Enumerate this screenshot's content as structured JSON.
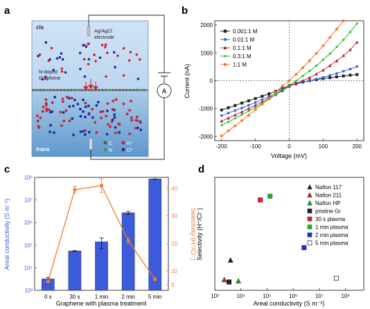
{
  "panel_labels": [
    "a",
    "b",
    "c",
    "d"
  ],
  "schematic": {
    "cis_label": "cis",
    "trans_label": "trans",
    "electrode_label": [
      "Ag/AgCl",
      "electrode"
    ],
    "membrane_label": [
      "N-doped",
      "Graphene"
    ],
    "ammeter_label": "A",
    "legend": [
      {
        "symbol": "C",
        "color": "#555555"
      },
      {
        "symbol": "H⁺",
        "color": "#cc2233"
      },
      {
        "symbol": "N",
        "color": "#33a046"
      },
      {
        "symbol": "Cl⁻",
        "color": "#1f2a9c"
      }
    ]
  },
  "chart_data": [
    {
      "panel": "b",
      "type": "line",
      "xlabel": "Voltage (mV)",
      "ylabel": "Current (nA)",
      "xlim": [
        -220,
        220
      ],
      "ylim": [
        -2150,
        2150
      ],
      "xticks": [
        -200,
        -100,
        0,
        100,
        200
      ],
      "yticks": [
        -2000,
        -1000,
        0,
        1000,
        2000
      ],
      "legend_position": "top-left",
      "series": [
        {
          "name": "0.001:1 M",
          "color": "#222222",
          "marker": "square",
          "x": [
            -200,
            -180,
            -160,
            -140,
            -120,
            -100,
            -80,
            -60,
            -40,
            -20,
            0,
            20,
            40,
            60,
            80,
            100,
            120,
            140,
            160,
            180,
            200
          ],
          "y": [
            -1050,
            -970,
            -890,
            -800,
            -720,
            -640,
            -560,
            -470,
            -380,
            -280,
            -170,
            -100,
            -50,
            0,
            40,
            80,
            110,
            140,
            170,
            200,
            220
          ]
        },
        {
          "name": "0.01:1 M",
          "color": "#3366dd",
          "marker": "circle",
          "x": [
            -200,
            -180,
            -160,
            -140,
            -120,
            -100,
            -80,
            -60,
            -40,
            -20,
            0,
            20,
            40,
            60,
            80,
            100,
            120,
            140,
            160,
            180,
            200
          ],
          "y": [
            -1250,
            -1160,
            -1070,
            -980,
            -880,
            -780,
            -680,
            -570,
            -450,
            -320,
            -180,
            -120,
            -60,
            0,
            60,
            120,
            190,
            260,
            340,
            420,
            510
          ]
        },
        {
          "name": "0.1:1 M",
          "color": "#ee2244",
          "marker": "triangle",
          "x": [
            -200,
            -180,
            -160,
            -140,
            -120,
            -100,
            -80,
            -60,
            -40,
            -20,
            0,
            20,
            40,
            60,
            80,
            100,
            120,
            140,
            160,
            180,
            200
          ],
          "y": [
            -1450,
            -1340,
            -1230,
            -1120,
            -1000,
            -880,
            -760,
            -630,
            -500,
            -360,
            -200,
            -100,
            0,
            110,
            240,
            380,
            540,
            710,
            900,
            1110,
            1380
          ]
        },
        {
          "name": "0.3:1 M",
          "color": "#22bb22",
          "marker": "diamond",
          "x": [
            -200,
            -180,
            -160,
            -140,
            -120,
            -100,
            -80,
            -60,
            -40,
            -20,
            0,
            20,
            40,
            60,
            80,
            100,
            120,
            140,
            160,
            180,
            200
          ],
          "y": [
            -1600,
            -1480,
            -1350,
            -1220,
            -1090,
            -950,
            -810,
            -660,
            -500,
            -340,
            -170,
            0,
            170,
            350,
            540,
            750,
            970,
            1210,
            1470,
            1750,
            2050
          ]
        },
        {
          "name": "1:1 M",
          "color": "#ff6a1a",
          "marker": "circle",
          "x": [
            -200,
            -180,
            -160,
            -140,
            -120,
            -100,
            -80,
            -60,
            -40,
            -20,
            0,
            20,
            40,
            60,
            80,
            100,
            120,
            140,
            160
          ],
          "y": [
            -1980,
            -1800,
            -1620,
            -1430,
            -1240,
            -1040,
            -840,
            -630,
            -410,
            -190,
            0,
            230,
            470,
            720,
            980,
            1260,
            1550,
            1850,
            2150
          ]
        }
      ]
    },
    {
      "panel": "c",
      "type": "bar",
      "xlabel": "Graphene with plasma treatment",
      "ylabel": "Areal conductivity (S m⁻²)",
      "y2label": "Selectivity (H⁺/Cl⁻)",
      "categories": [
        "0 s",
        "30 s",
        "1 min",
        "2 min",
        "5 min"
      ],
      "ylim_log": [
        3,
        8
      ],
      "y2lim": [
        3,
        44
      ],
      "bar_color": "#3b5bdb",
      "line_color": "#f07a2a",
      "series": [
        {
          "name": "Areal conductivity",
          "axis": "left",
          "scale": "log",
          "values": [
            3200,
            55000,
            140000,
            2700000,
            85000000
          ],
          "error": [
            500,
            2000,
            70000,
            400000,
            1000000
          ]
        },
        {
          "name": "Selectivity",
          "axis": "right",
          "values": [
            6.2,
            39.5,
            41,
            21,
            7
          ],
          "error": [
            0.3,
            1.2,
            2.5,
            1.0,
            0.3
          ]
        }
      ],
      "yticks_log": [
        "10³",
        "10⁴",
        "10⁵",
        "10⁶",
        "10⁷",
        "10⁸"
      ],
      "y2ticks": [
        5,
        10,
        20,
        30,
        40
      ]
    },
    {
      "panel": "d",
      "type": "scatter",
      "xlabel": "Areal conductivity (S m⁻²)",
      "ylabel": "Selectivity (H⁺/Cl⁻)",
      "x_scale": "log",
      "xlim_log": [
        3,
        8.7
      ],
      "ylim": [
        3,
        48
      ],
      "xticks_log": [
        "10³",
        "10⁴",
        "10⁵",
        "10⁶",
        "10⁷",
        "10⁸"
      ],
      "legend_position": "top-right",
      "series": [
        {
          "name": "Nafion 117",
          "marker": "triangle",
          "color": "#222222",
          "fill": true,
          "x": [
            4000
          ],
          "y": [
            15
          ]
        },
        {
          "name": "Nafion 211",
          "marker": "triangle",
          "color": "#cc2233",
          "fill": true,
          "x": [
            2300
          ],
          "y": [
            7.2
          ]
        },
        {
          "name": "Nafion HP",
          "marker": "triangle",
          "color": "#22aa22",
          "fill": true,
          "x": [
            8000
          ],
          "y": [
            6.7
          ]
        },
        {
          "name": "pristine Gr",
          "marker": "square",
          "color": "#222222",
          "fill": true,
          "x": [
            3500
          ],
          "y": [
            6.3
          ]
        },
        {
          "name": "30 s plasma",
          "marker": "square",
          "color": "#cc2233",
          "fill": true,
          "x": [
            55000
          ],
          "y": [
            39
          ]
        },
        {
          "name": "1 min plasma",
          "marker": "square",
          "color": "#22aa22",
          "fill": true,
          "x": [
            130000
          ],
          "y": [
            40.5
          ]
        },
        {
          "name": "2 min plasma",
          "marker": "square",
          "color": "#2233cc",
          "fill": true,
          "x": [
            2600000
          ],
          "y": [
            20
          ]
        },
        {
          "name": "5 min plasma",
          "marker": "square",
          "color": "#222222",
          "fill": false,
          "x": [
            45000000
          ],
          "y": [
            7.8
          ]
        }
      ]
    }
  ]
}
